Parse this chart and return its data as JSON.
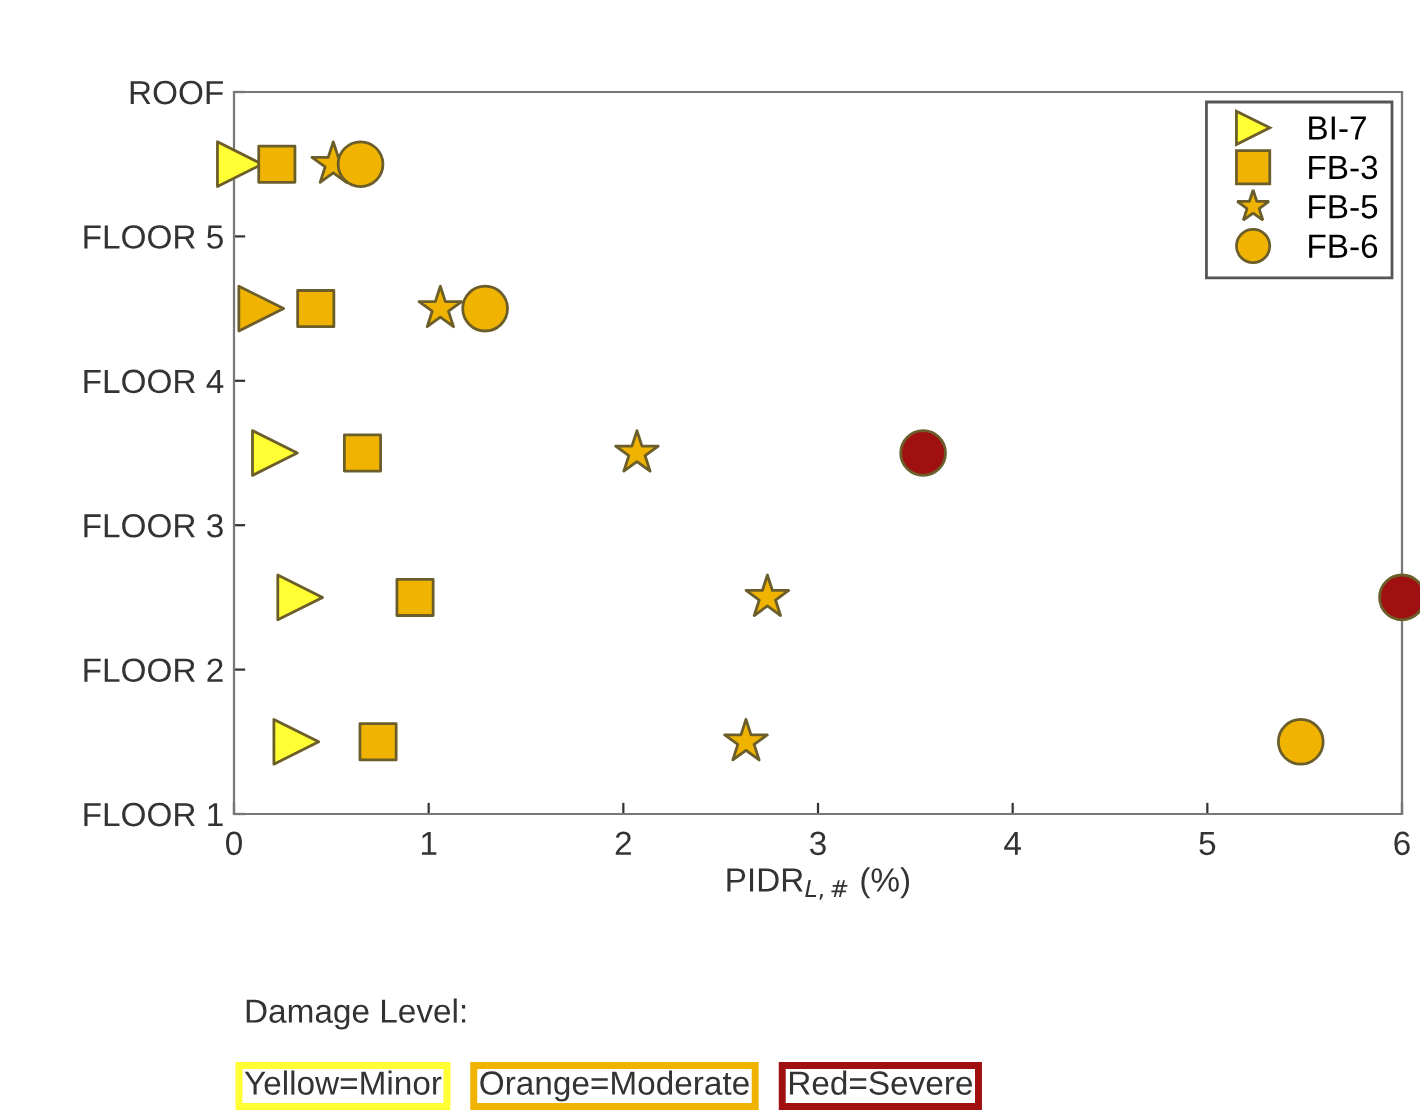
{
  "chart_data": {
    "type": "scatter",
    "orientation": "horizontal",
    "xlabel": "PIDR$_{L,#}$ (%)",
    "xlim": [
      0,
      6
    ],
    "xticks": [
      0,
      1,
      2,
      3,
      4,
      5,
      6
    ],
    "categories": [
      "ROOF",
      null,
      "FLOOR 5",
      null,
      "FLOOR 4",
      null,
      "FLOOR 3",
      null,
      "FLOOR 2",
      null,
      "FLOOR 1"
    ],
    "grid": false,
    "legend": "top right",
    "series": [
      {
        "name": "BI-7",
        "marker": "triangle",
        "color": "#6b5e2a",
        "values": [
          null,
          0.03,
          null,
          0.14,
          null,
          0.21,
          null,
          0.34,
          null,
          0.32,
          null
        ],
        "colors": [
          null,
          "#ffff33",
          null,
          "#f0b400",
          null,
          "#ffff33",
          null,
          "#ffff33",
          null,
          "#ffff33",
          null
        ]
      },
      {
        "name": "FB-3",
        "marker": "square",
        "color": "#6b5e2a",
        "values": [
          null,
          0.22,
          null,
          0.42,
          null,
          0.66,
          null,
          0.93,
          null,
          0.74,
          null
        ],
        "colors": [
          null,
          "#f0b400",
          null,
          "#f0b400",
          null,
          "#f0b400",
          null,
          "#f0b400",
          null,
          "#f0b400",
          null
        ]
      },
      {
        "name": "FB-5",
        "marker": "star",
        "color": "#6b5e2a",
        "values": [
          null,
          0.51,
          null,
          1.06,
          null,
          2.07,
          null,
          2.74,
          null,
          2.63,
          null
        ],
        "colors": [
          null,
          "#f0b400",
          null,
          "#f0b400",
          null,
          "#f0b400",
          null,
          "#f0b400",
          null,
          "#f0b400",
          null
        ]
      },
      {
        "name": "FB-6",
        "marker": "circle",
        "color": "#6b5e2a",
        "values": [
          null,
          0.65,
          null,
          1.29,
          null,
          3.54,
          null,
          6.0,
          null,
          5.48,
          null
        ],
        "colors": [
          null,
          "#f0b400",
          null,
          "#f0b400",
          null,
          "#a01010",
          null,
          "#a01010",
          null,
          "#f0b400",
          null
        ]
      }
    ],
    "annotations": [
      "Damage Level:",
      "Yellow=Minor",
      "Orange=Moderate",
      "Red=Severe"
    ]
  }
}
